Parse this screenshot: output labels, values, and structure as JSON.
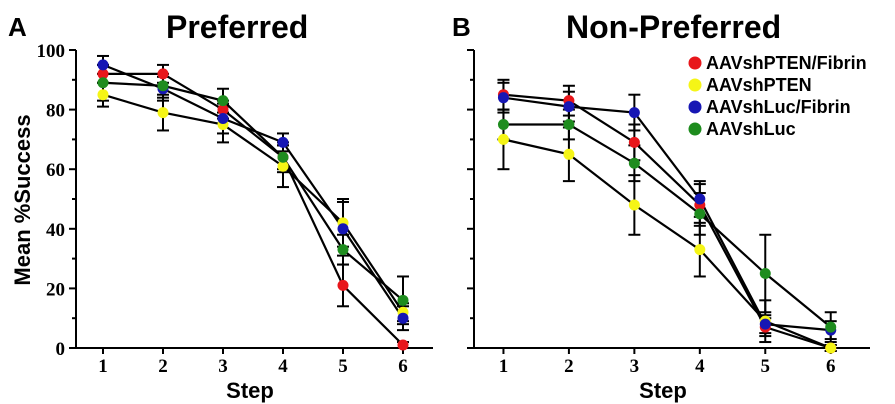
{
  "chart_data": [
    {
      "type": "line",
      "panel_letter": "A",
      "title": "Preferred",
      "xlabel": "Step",
      "ylabel": "Mean %Success",
      "x": [
        1,
        2,
        3,
        4,
        5,
        6
      ],
      "xlim": [
        0.55,
        6.5
      ],
      "ylim": [
        0,
        100
      ],
      "yticks": [
        0,
        20,
        40,
        60,
        80,
        100
      ],
      "series": [
        {
          "name": "AAVshPTEN/Fibrin",
          "color": "#e8161b",
          "values": [
            92,
            92,
            80,
            64,
            21,
            1
          ],
          "errors": [
            3,
            3,
            3,
            4,
            7,
            1
          ]
        },
        {
          "name": "AAVshPTEN",
          "color": "#f5f516",
          "values": [
            85,
            79,
            75,
            61,
            42,
            12
          ],
          "errors": [
            4,
            6,
            6,
            7,
            8,
            3
          ]
        },
        {
          "name": "AAVshLuc/Fibrin",
          "color": "#1616b4",
          "values": [
            95,
            87,
            77,
            69,
            40,
            10
          ],
          "errors": [
            3,
            4,
            5,
            3,
            9,
            4
          ]
        },
        {
          "name": "AAVshLuc",
          "color": "#1e8c1e",
          "values": [
            89,
            88,
            83,
            64,
            33,
            16
          ],
          "errors": [
            6,
            4,
            4,
            5,
            5,
            8
          ]
        }
      ]
    },
    {
      "type": "line",
      "panel_letter": "B",
      "title": "Non-Preferred",
      "xlabel": "Step",
      "x": [
        1,
        2,
        3,
        4,
        5,
        6
      ],
      "xlim": [
        0.55,
        6.6
      ],
      "ylim": [
        0,
        100
      ],
      "legend_position": "top-right",
      "series": [
        {
          "name": "AAVshPTEN/Fibrin",
          "color": "#e8161b",
          "values": [
            85,
            83,
            69,
            48,
            7,
            0
          ],
          "errors": [
            5,
            5,
            6,
            7,
            3,
            1
          ]
        },
        {
          "name": "AAVshPTEN",
          "color": "#f5f516",
          "values": [
            70,
            65,
            48,
            33,
            9,
            0
          ],
          "errors": [
            10,
            9,
            10,
            9,
            7,
            1
          ]
        },
        {
          "name": "AAVshLuc/Fibrin",
          "color": "#1616b4",
          "values": [
            84,
            81,
            79,
            50,
            8,
            6
          ],
          "errors": [
            5,
            5,
            6,
            6,
            3,
            3
          ]
        },
        {
          "name": "AAVshLuc",
          "color": "#1e8c1e",
          "values": [
            75,
            75,
            62,
            45,
            25,
            7
          ],
          "errors": [
            5,
            5,
            6,
            7,
            13,
            5
          ]
        }
      ]
    }
  ]
}
